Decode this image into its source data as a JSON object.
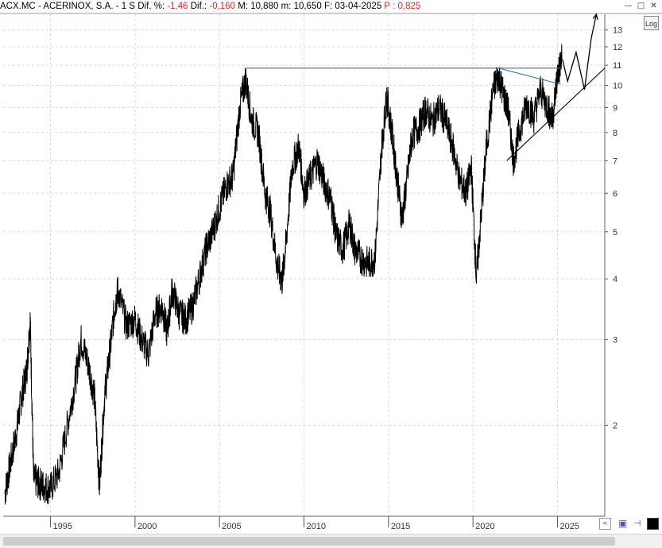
{
  "header": {
    "ticker": "ACX.MC",
    "name": "ACERINOX, S.A.",
    "sep": "-",
    "period": "1 S",
    "dif_pct_label": "Dif. %:",
    "dif_pct": "-1,46",
    "dif_label": "Dif.:",
    "dif": "-0,160",
    "max_label": "M:",
    "max": "10,880",
    "min_label": "m:",
    "min": "10,650",
    "date_label": "F:",
    "date": "03-04-2025",
    "price_label": "P :",
    "price": "0,825"
  },
  "window_buttons": [
    "minimize-icon",
    "maximize-icon",
    "close-icon"
  ],
  "log_button": "Log",
  "colors": {
    "price": "#000000",
    "resistance": "#3a6f9a",
    "negative": "#e0262a",
    "grid": "#d8d8d8"
  },
  "chart_data": {
    "type": "line",
    "scale": "log",
    "grid": true,
    "ylim": [
      1.3,
      14
    ],
    "xlim": [
      1992.2,
      2027.8
    ],
    "y_ticks": [
      2,
      3,
      4,
      5,
      6,
      7,
      8,
      9,
      10,
      11,
      12,
      13
    ],
    "y_tick_labels": [
      "2",
      "3",
      "4",
      "5",
      "6",
      "7",
      "8",
      "9",
      "10",
      "11",
      "12",
      "13"
    ],
    "x_ticks": [
      1995,
      2000,
      2005,
      2010,
      2015,
      2020,
      2025
    ],
    "x_tick_labels": [
      "1995",
      "2000",
      "2005",
      "2010",
      "2015",
      "2020",
      "2025"
    ],
    "series": [
      {
        "x": [
          1992.3,
          1992.6,
          1993.0,
          1993.3,
          1993.6,
          1993.8,
          1994.0,
          1994.3,
          1994.6,
          1995.0,
          1995.5,
          1996.0,
          1996.5,
          1996.8,
          1997.2,
          1997.6,
          1997.9,
          1998.2,
          1998.5,
          1998.8,
          1999.0,
          1999.5,
          2000.0,
          2000.4,
          2000.8,
          2001.2,
          2001.6,
          2001.9,
          2002.2,
          2002.6,
          2003.0,
          2003.4,
          2003.8,
          2004.2,
          2004.6,
          2005.0,
          2005.4,
          2005.8,
          2006.2,
          2006.55,
          2006.9,
          2007.3,
          2007.7,
          2008.0,
          2008.4,
          2008.7,
          2008.95,
          2009.3,
          2009.7,
          2010.0,
          2010.4,
          2010.8,
          2011.2,
          2011.6,
          2011.9,
          2012.3,
          2012.7,
          2013.0,
          2013.4,
          2013.8,
          2014.2,
          2014.6,
          2014.9,
          2015.2,
          2015.5,
          2015.8,
          2016.1,
          2016.4,
          2016.8,
          2017.2,
          2017.6,
          2018.0,
          2018.4,
          2018.8,
          2019.2,
          2019.6,
          2019.9,
          2020.2,
          2020.5,
          2020.8,
          2021.2,
          2021.5,
          2021.8,
          2022.1,
          2022.4,
          2022.8,
          2023.2,
          2023.6,
          2024.0,
          2024.4,
          2024.7,
          2025.0,
          2025.26
        ],
        "y": [
          1.45,
          1.65,
          1.95,
          2.3,
          2.6,
          3.3,
          1.55,
          1.52,
          1.5,
          1.48,
          1.6,
          2.0,
          2.5,
          3.0,
          2.7,
          2.3,
          1.5,
          2.3,
          2.8,
          3.5,
          3.8,
          3.2,
          3.3,
          3.0,
          2.8,
          3.4,
          3.5,
          3.1,
          3.8,
          3.4,
          3.3,
          3.5,
          4.0,
          4.6,
          5.0,
          5.6,
          6.2,
          6.5,
          9.0,
          10.3,
          8.5,
          8.0,
          6.0,
          5.5,
          4.3,
          3.95,
          4.8,
          6.8,
          7.5,
          6.0,
          6.5,
          7.0,
          6.3,
          5.8,
          4.9,
          4.6,
          5.2,
          4.6,
          4.4,
          4.3,
          4.4,
          7.5,
          9.5,
          8.0,
          6.5,
          5.3,
          6.4,
          7.9,
          8.2,
          8.9,
          8.4,
          9.0,
          8.4,
          7.5,
          6.4,
          6.0,
          6.8,
          4.0,
          5.5,
          7.5,
          9.8,
          10.5,
          9.6,
          8.8,
          7.0,
          8.2,
          9.2,
          8.6,
          9.8,
          9.0,
          8.5,
          10.5,
          11.3
        ]
      }
    ],
    "annotations": [
      {
        "type": "resistance",
        "x1": 2006.55,
        "y1": 10.85,
        "x2": 2025.2,
        "y2": 10.85
      },
      {
        "type": "trendline",
        "x1": 2021.5,
        "y1": 10.85,
        "x2": 2025.2,
        "y2": 10.05
      },
      {
        "type": "support",
        "x1": 2022.0,
        "y1": 7.0,
        "x2": 2027.8,
        "y2": 10.85
      },
      {
        "type": "projection",
        "points": [
          [
            2025.3,
            11.3
          ],
          [
            2025.6,
            10.2
          ],
          [
            2026.1,
            11.7
          ],
          [
            2026.6,
            9.8
          ],
          [
            2027.0,
            12.5
          ],
          [
            2027.3,
            14.0
          ]
        ]
      }
    ]
  }
}
